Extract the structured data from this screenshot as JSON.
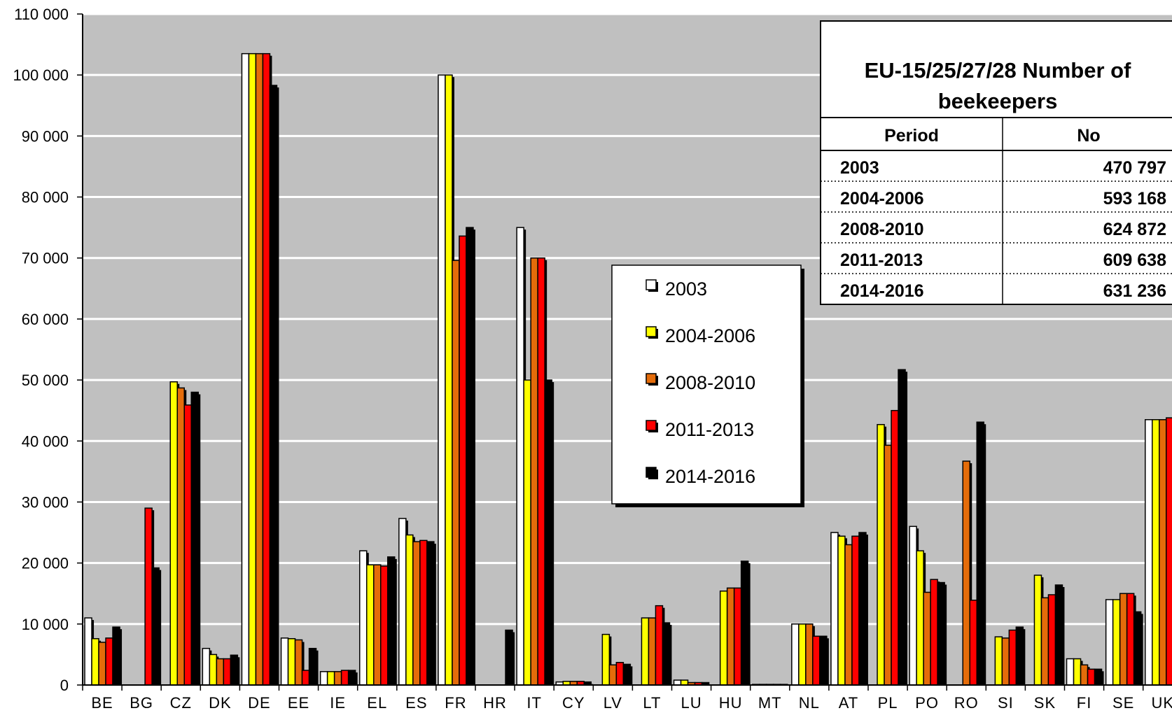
{
  "chart_data": {
    "type": "bar",
    "categories": [
      "BE",
      "BG",
      "CZ",
      "DK",
      "DE",
      "EE",
      "IE",
      "EL",
      "ES",
      "FR",
      "HR",
      "IT",
      "CY",
      "LV",
      "LT",
      "LU",
      "HU",
      "MT",
      "NL",
      "AT",
      "PL",
      "PO",
      "RO",
      "SI",
      "SK",
      "FI",
      "SE",
      "UK"
    ],
    "series": [
      {
        "name": "2003",
        "color": "#ffffff",
        "values": [
          11000,
          null,
          null,
          6000,
          103500,
          7700,
          2200,
          22000,
          27300,
          100000,
          null,
          75000,
          500,
          null,
          null,
          800,
          null,
          100,
          10000,
          25000,
          null,
          26000,
          null,
          null,
          null,
          4300,
          14000,
          43500
        ]
      },
      {
        "name": "2004-2006",
        "color": "#ffff00",
        "values": [
          7600,
          null,
          49700,
          5000,
          103500,
          7600,
          2200,
          19700,
          24600,
          100000,
          null,
          50000,
          600,
          8300,
          11000,
          800,
          15400,
          100,
          10000,
          24400,
          42700,
          22000,
          null,
          7900,
          18000,
          4300,
          14000,
          43500
        ]
      },
      {
        "name": "2008-2010",
        "color": "#e46c0a",
        "values": [
          7000,
          null,
          48700,
          4300,
          103500,
          7400,
          2200,
          19700,
          23500,
          69600,
          null,
          70000,
          600,
          3300,
          11000,
          400,
          15900,
          100,
          10000,
          23000,
          39300,
          15200,
          36700,
          7700,
          14300,
          3300,
          15000,
          43500
        ]
      },
      {
        "name": "2011-2013",
        "color": "#ff0000",
        "values": [
          7700,
          29000,
          45900,
          4300,
          103500,
          2400,
          2400,
          19500,
          23700,
          73600,
          null,
          70000,
          600,
          3700,
          13000,
          400,
          15900,
          100,
          8000,
          24400,
          45000,
          17300,
          13900,
          9000,
          14800,
          2600,
          15000,
          43800
        ]
      },
      {
        "name": "2014-2016",
        "color": "#000000",
        "values": [
          9500,
          19200,
          48000,
          4900,
          98300,
          6000,
          2400,
          21000,
          23500,
          75000,
          9000,
          50000,
          500,
          3400,
          10200,
          400,
          20300,
          100,
          8000,
          25000,
          51700,
          16800,
          43100,
          9500,
          16400,
          2600,
          12000,
          43500
        ]
      }
    ],
    "ylim": [
      0,
      110000
    ],
    "yticks": [
      "0",
      "10 000",
      "20 000",
      "30 000",
      "40 000",
      "50 000",
      "60 000",
      "70 000",
      "80 000",
      "90 000",
      "100 000",
      "110 000"
    ],
    "grid": true,
    "plot_background": "#c0c0c0",
    "legend_position": "center-right",
    "inset_table": {
      "title": "EU-15/25/27/28  Number of beekeepers",
      "title_line1": "EU-15/25/27/28  Number of",
      "title_line2": "beekeepers",
      "headers": [
        "Period",
        "No"
      ],
      "rows": [
        {
          "period": "2003",
          "no": "470 797"
        },
        {
          "period": "2004-2006",
          "no": "593 168"
        },
        {
          "period": "2008-2010",
          "no": "624 872"
        },
        {
          "period": "2011-2013",
          "no": "609 638"
        },
        {
          "period": "2014-2016",
          "no": "631 236"
        }
      ]
    }
  }
}
